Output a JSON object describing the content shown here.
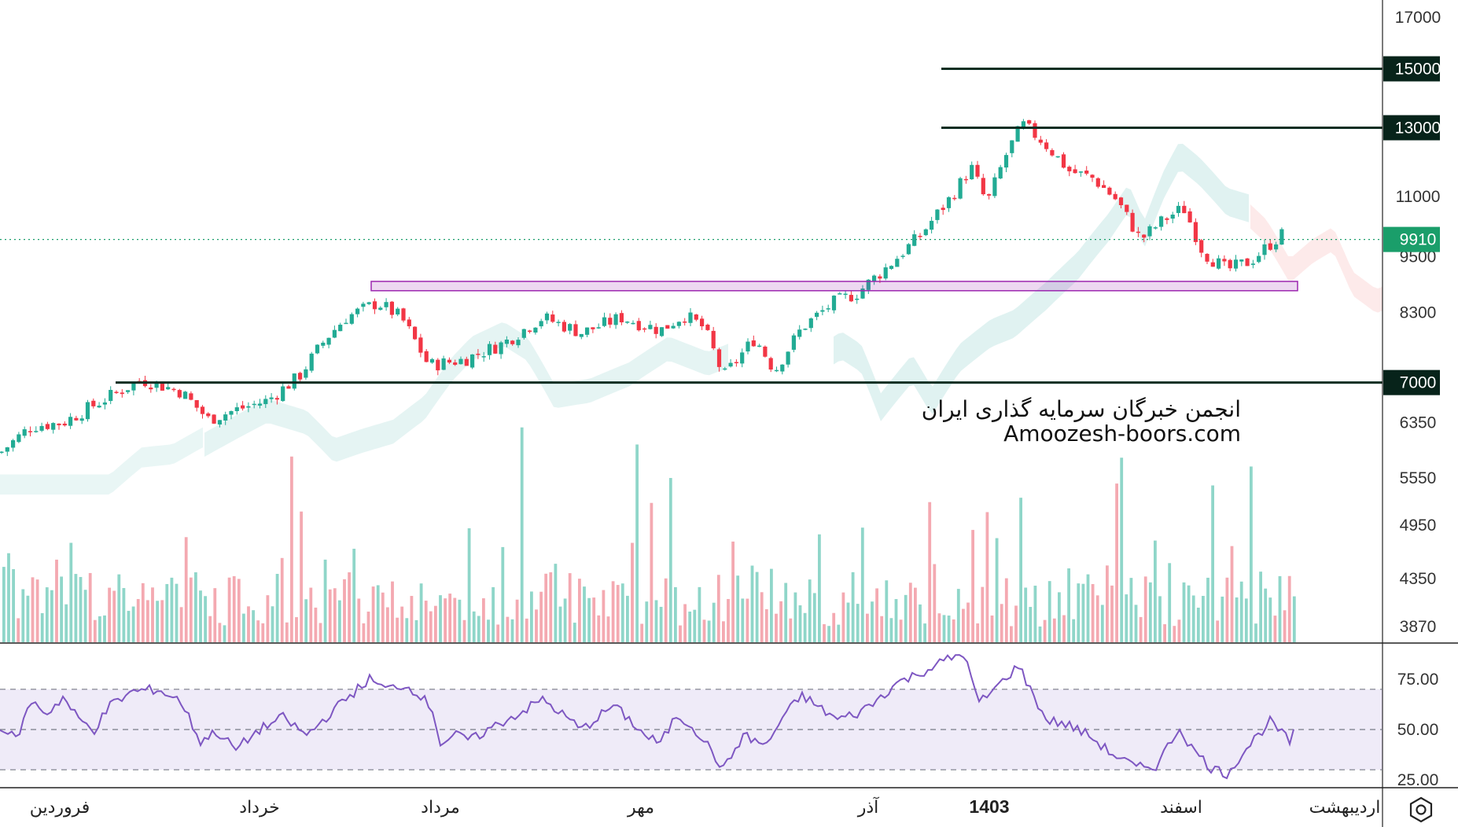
{
  "chart_data": [
    {
      "type": "candlestick",
      "title": "",
      "price_axis": {
        "ticks": [
          "17000",
          "11000",
          "9500",
          "8300",
          "6350",
          "5550",
          "4950",
          "4350",
          "3870"
        ],
        "tick_values": [
          17000,
          11000,
          9500,
          8300,
          6350,
          5550,
          4950,
          4350,
          3870
        ],
        "scale": "log"
      },
      "last_price": {
        "label": "9910",
        "value": 9910,
        "color": "#1a9e6a"
      },
      "horizontal_levels": [
        {
          "label": "15000",
          "value": 15000
        },
        {
          "label": "13000",
          "value": 13000
        },
        {
          "label": "7000",
          "value": 7000
        }
      ],
      "support_zone": {
        "low": 8750,
        "high": 8950,
        "color": "#9c27b0"
      },
      "time_axis": [
        "فروردین",
        "خرداد",
        "مرداد",
        "مهر",
        "آذر",
        "1403",
        "اسفند",
        "اردیبهشت"
      ],
      "time_axis_bold": "1403",
      "close_path": [
        {
          "t": 0,
          "v": 5900
        },
        {
          "t": 40,
          "v": 6300
        },
        {
          "t": 80,
          "v": 6350
        },
        {
          "t": 130,
          "v": 6700
        },
        {
          "t": 180,
          "v": 7050
        },
        {
          "t": 230,
          "v": 6850
        },
        {
          "t": 265,
          "v": 6400
        },
        {
          "t": 300,
          "v": 6550
        },
        {
          "t": 340,
          "v": 6700
        },
        {
          "t": 380,
          "v": 7100
        },
        {
          "t": 415,
          "v": 7800
        },
        {
          "t": 440,
          "v": 8200
        },
        {
          "t": 480,
          "v": 8500
        },
        {
          "t": 510,
          "v": 8200
        },
        {
          "t": 545,
          "v": 7300
        },
        {
          "t": 590,
          "v": 7400
        },
        {
          "t": 640,
          "v": 7700
        },
        {
          "t": 690,
          "v": 8200
        },
        {
          "t": 740,
          "v": 7900
        },
        {
          "t": 790,
          "v": 8200
        },
        {
          "t": 840,
          "v": 7950
        },
        {
          "t": 870,
          "v": 8250
        },
        {
          "t": 895,
          "v": 8000
        },
        {
          "t": 920,
          "v": 7100
        },
        {
          "t": 960,
          "v": 7800
        },
        {
          "t": 985,
          "v": 7200
        },
        {
          "t": 1020,
          "v": 8000
        },
        {
          "t": 1060,
          "v": 8500
        },
        {
          "t": 1090,
          "v": 8700
        },
        {
          "t": 1130,
          "v": 9300
        },
        {
          "t": 1170,
          "v": 10000
        },
        {
          "t": 1210,
          "v": 11000
        },
        {
          "t": 1235,
          "v": 11800
        },
        {
          "t": 1255,
          "v": 10800
        },
        {
          "t": 1280,
          "v": 12200
        },
        {
          "t": 1300,
          "v": 13100
        },
        {
          "t": 1325,
          "v": 12600
        },
        {
          "t": 1360,
          "v": 11700
        },
        {
          "t": 1390,
          "v": 11500
        },
        {
          "t": 1420,
          "v": 10900
        },
        {
          "t": 1450,
          "v": 9900
        },
        {
          "t": 1480,
          "v": 10400
        },
        {
          "t": 1505,
          "v": 10700
        },
        {
          "t": 1530,
          "v": 9600
        },
        {
          "t": 1560,
          "v": 9200
        },
        {
          "t": 1590,
          "v": 9400
        },
        {
          "t": 1615,
          "v": 9800
        },
        {
          "t": 1635,
          "v": 10100
        }
      ],
      "watermark": [
        "انجمن خبرگان سرمایه گذاری ایران",
        "Amoozesh-boors.com"
      ],
      "colors": {
        "up": "#22ab94",
        "down": "#f23645",
        "cloud_up": "#26a69a",
        "cloud_down": "#ef5350",
        "level_line": "#0b2e22",
        "label_bg": "#07231a"
      }
    },
    {
      "type": "bar",
      "name": "volume",
      "axis_ticks": []
    },
    {
      "type": "line",
      "name": "rsi",
      "axis_ticks": [
        "75.00",
        "50.00",
        "25.00"
      ],
      "tick_values": [
        75,
        50,
        25
      ],
      "band": [
        30,
        70
      ],
      "midline": 50,
      "color": "#7e57c2",
      "path": [
        {
          "t": 0,
          "v": 52
        },
        {
          "t": 20,
          "v": 45
        },
        {
          "t": 40,
          "v": 64
        },
        {
          "t": 60,
          "v": 58
        },
        {
          "t": 80,
          "v": 66
        },
        {
          "t": 100,
          "v": 55
        },
        {
          "t": 120,
          "v": 50
        },
        {
          "t": 140,
          "v": 62
        },
        {
          "t": 170,
          "v": 69
        },
        {
          "t": 200,
          "v": 70
        },
        {
          "t": 230,
          "v": 64
        },
        {
          "t": 255,
          "v": 44
        },
        {
          "t": 275,
          "v": 49
        },
        {
          "t": 300,
          "v": 40
        },
        {
          "t": 330,
          "v": 50
        },
        {
          "t": 360,
          "v": 56
        },
        {
          "t": 390,
          "v": 47
        },
        {
          "t": 420,
          "v": 58
        },
        {
          "t": 445,
          "v": 67
        },
        {
          "t": 470,
          "v": 75
        },
        {
          "t": 490,
          "v": 70
        },
        {
          "t": 510,
          "v": 72
        },
        {
          "t": 530,
          "v": 69
        },
        {
          "t": 550,
          "v": 60
        },
        {
          "t": 560,
          "v": 43
        },
        {
          "t": 580,
          "v": 47
        },
        {
          "t": 600,
          "v": 45
        },
        {
          "t": 630,
          "v": 52
        },
        {
          "t": 660,
          "v": 58
        },
        {
          "t": 690,
          "v": 65
        },
        {
          "t": 720,
          "v": 56
        },
        {
          "t": 740,
          "v": 50
        },
        {
          "t": 760,
          "v": 56
        },
        {
          "t": 780,
          "v": 62
        },
        {
          "t": 800,
          "v": 55
        },
        {
          "t": 820,
          "v": 47
        },
        {
          "t": 840,
          "v": 43
        },
        {
          "t": 860,
          "v": 57
        },
        {
          "t": 880,
          "v": 52
        },
        {
          "t": 900,
          "v": 42
        },
        {
          "t": 920,
          "v": 30
        },
        {
          "t": 945,
          "v": 47
        },
        {
          "t": 975,
          "v": 42
        },
        {
          "t": 995,
          "v": 56
        },
        {
          "t": 1020,
          "v": 67
        },
        {
          "t": 1045,
          "v": 60
        },
        {
          "t": 1065,
          "v": 55
        },
        {
          "t": 1090,
          "v": 58
        },
        {
          "t": 1110,
          "v": 63
        },
        {
          "t": 1140,
          "v": 73
        },
        {
          "t": 1170,
          "v": 78
        },
        {
          "t": 1200,
          "v": 84
        },
        {
          "t": 1225,
          "v": 88
        },
        {
          "t": 1245,
          "v": 63
        },
        {
          "t": 1270,
          "v": 72
        },
        {
          "t": 1295,
          "v": 82
        },
        {
          "t": 1310,
          "v": 70
        },
        {
          "t": 1330,
          "v": 55
        },
        {
          "t": 1360,
          "v": 52
        },
        {
          "t": 1385,
          "v": 47
        },
        {
          "t": 1410,
          "v": 39
        },
        {
          "t": 1445,
          "v": 31
        },
        {
          "t": 1470,
          "v": 32
        },
        {
          "t": 1500,
          "v": 51
        },
        {
          "t": 1515,
          "v": 41
        },
        {
          "t": 1540,
          "v": 31
        },
        {
          "t": 1560,
          "v": 28
        },
        {
          "t": 1590,
          "v": 43
        },
        {
          "t": 1615,
          "v": 54
        },
        {
          "t": 1640,
          "v": 44
        },
        {
          "t": 1645,
          "v": 48
        }
      ]
    }
  ],
  "icons": {
    "logo": "tradingview-logo-icon"
  }
}
